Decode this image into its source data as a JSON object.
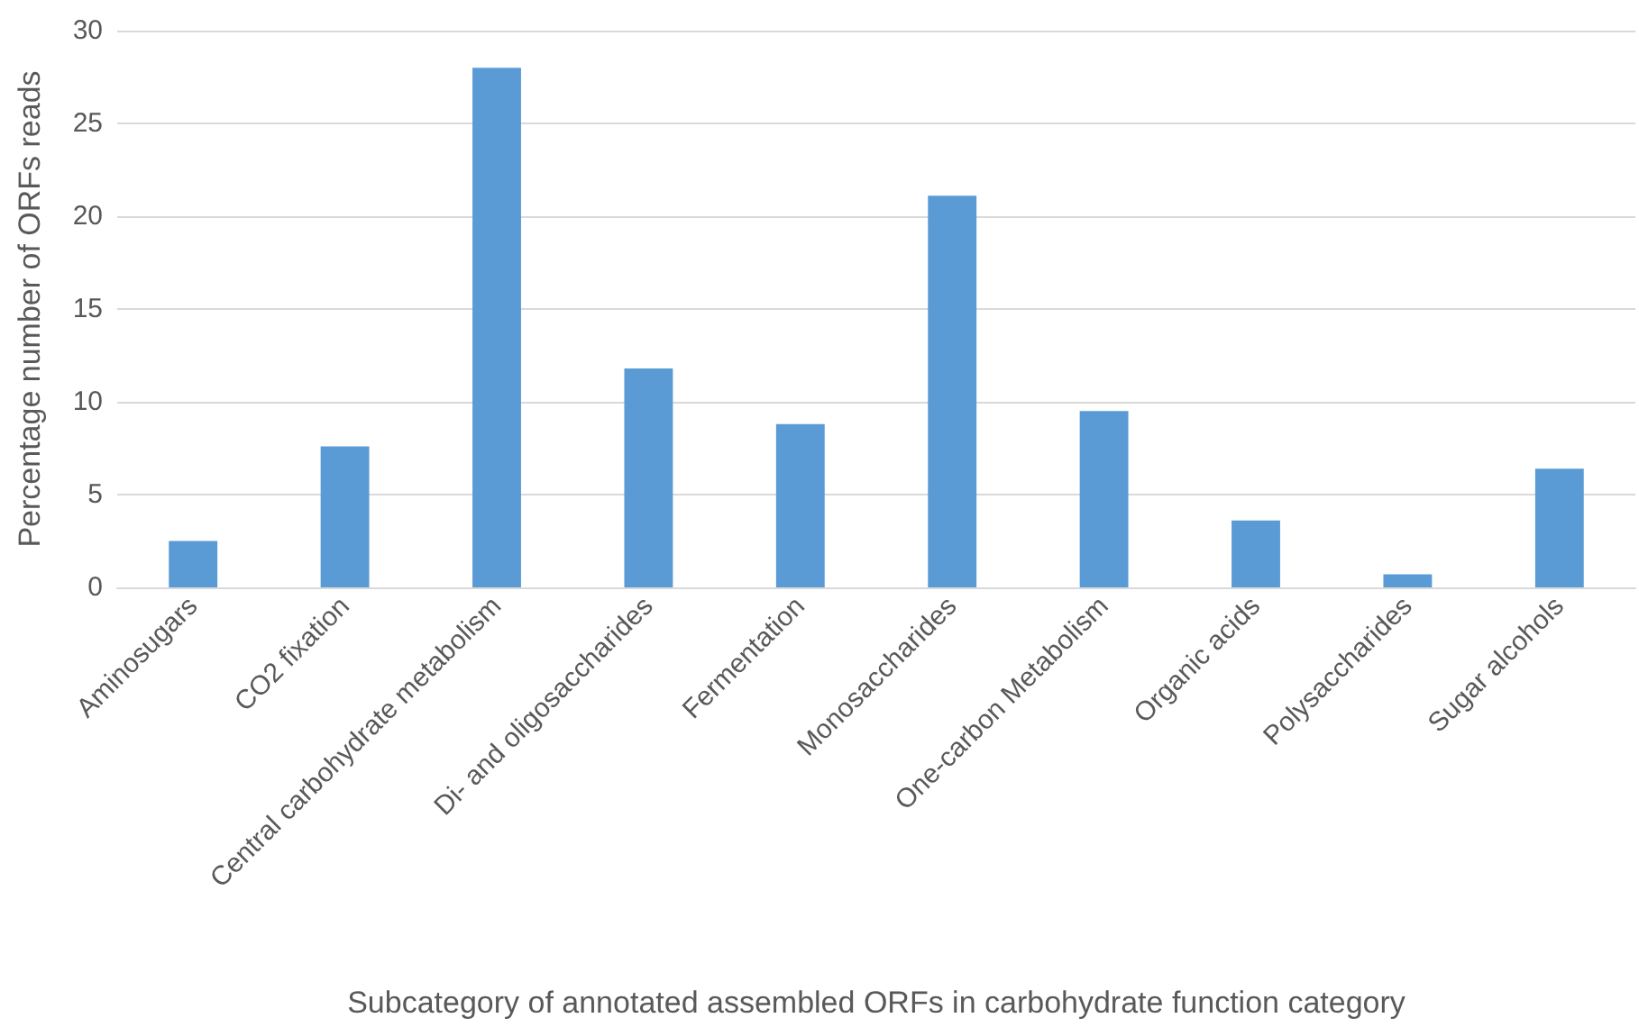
{
  "chart_data": {
    "type": "bar",
    "xlabel": "Subcategory of annotated assembled ORFs in carbohydrate function category",
    "ylabel": "Percentage number of ORFs reads",
    "categories": [
      "Aminosugars",
      "CO2 fixation",
      "Central carbohydrate metabolism",
      "Di- and oligosaccharides",
      "Fermentation",
      "Monosaccharides",
      "One-carbon Metabolism",
      "Organic acids",
      "Polysaccharides",
      "Sugar alcohols"
    ],
    "values": [
      2.5,
      7.6,
      28.0,
      11.8,
      8.8,
      21.1,
      9.5,
      3.6,
      0.7,
      6.4
    ],
    "color": "#5b9bd5",
    "ylim": [
      0,
      30
    ],
    "yticks": [
      0,
      5,
      10,
      15,
      20,
      25,
      30
    ],
    "grid": "y"
  }
}
